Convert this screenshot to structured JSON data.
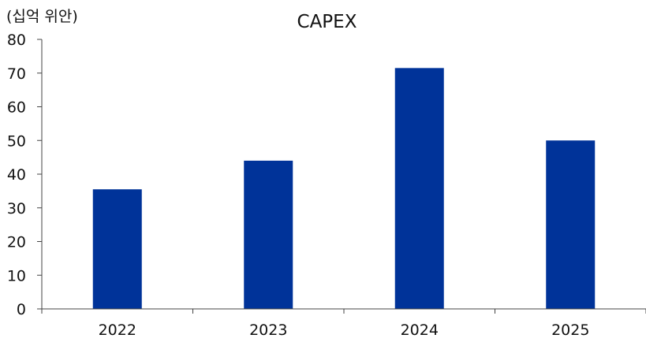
{
  "chart_data": {
    "type": "bar",
    "title": "CAPEX",
    "unit_label": "(십억 위안)",
    "categories": [
      "2022",
      "2023",
      "2024",
      "2025"
    ],
    "values": [
      35.5,
      44,
      71.5,
      50
    ],
    "ylim": [
      0,
      80
    ],
    "yticks": [
      0,
      10,
      20,
      30,
      40,
      50,
      60,
      70,
      80
    ],
    "xlabel": "",
    "ylabel": "",
    "grid": false,
    "legend": "none",
    "bar_color": "#003399"
  }
}
